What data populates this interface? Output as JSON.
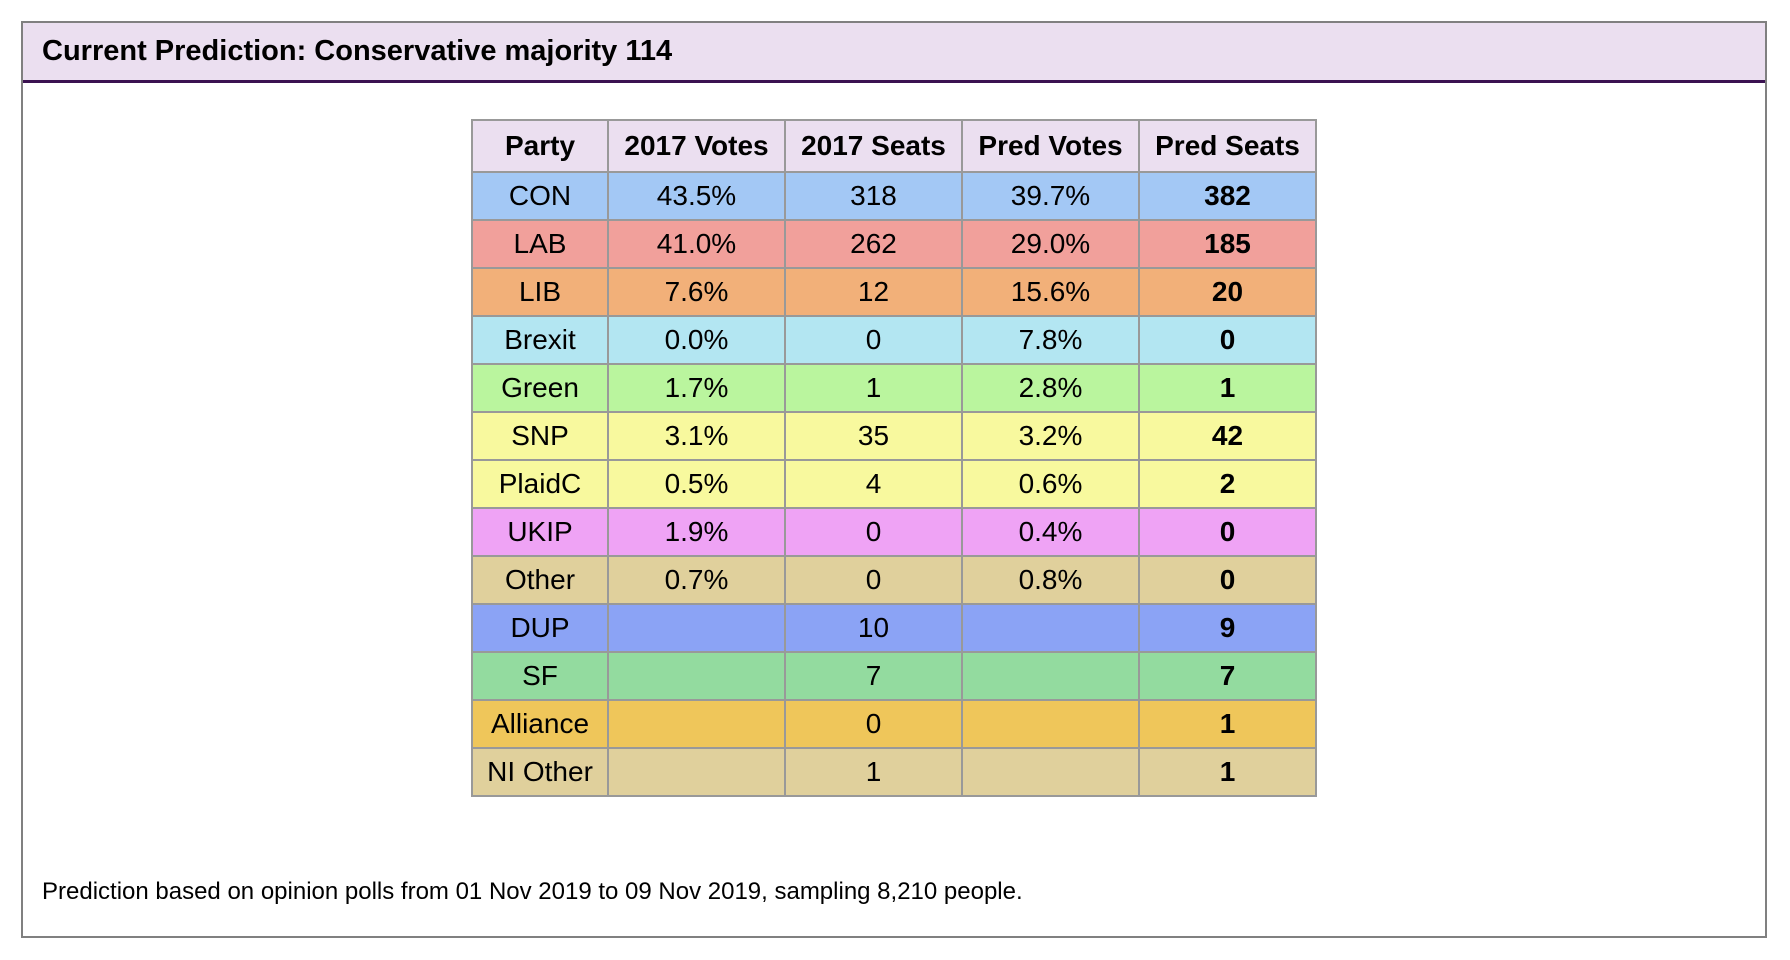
{
  "panel": {
    "title": "Current Prediction: Conservative majority 114",
    "footnote": "Prediction based on opinion polls from 01 Nov 2019 to 09 Nov 2019, sampling 8,210 people."
  },
  "colors": {
    "header_bg": "#ebdff0",
    "header_border": "#3b1251"
  },
  "table": {
    "headers": [
      "Party",
      "2017 Votes",
      "2017 Seats",
      "Pred Votes",
      "Pred Seats"
    ],
    "rows": [
      {
        "party": "CON",
        "votes_2017": "43.5%",
        "seats_2017": "318",
        "pred_votes": "39.7%",
        "pred_seats": "382",
        "color": "#a3c8f5"
      },
      {
        "party": "LAB",
        "votes_2017": "41.0%",
        "seats_2017": "262",
        "pred_votes": "29.0%",
        "pred_seats": "185",
        "color": "#f1a09b"
      },
      {
        "party": "LIB",
        "votes_2017": "7.6%",
        "seats_2017": "12",
        "pred_votes": "15.6%",
        "pred_seats": "20",
        "color": "#f2b079"
      },
      {
        "party": "Brexit",
        "votes_2017": "0.0%",
        "seats_2017": "0",
        "pred_votes": "7.8%",
        "pred_seats": "0",
        "color": "#b3e6f2"
      },
      {
        "party": "Green",
        "votes_2017": "1.7%",
        "seats_2017": "1",
        "pred_votes": "2.8%",
        "pred_seats": "1",
        "color": "#baf59e"
      },
      {
        "party": "SNP",
        "votes_2017": "3.1%",
        "seats_2017": "35",
        "pred_votes": "3.2%",
        "pred_seats": "42",
        "color": "#f8f99e"
      },
      {
        "party": "PlaidC",
        "votes_2017": "0.5%",
        "seats_2017": "4",
        "pred_votes": "0.6%",
        "pred_seats": "2",
        "color": "#f8f99e"
      },
      {
        "party": "UKIP",
        "votes_2017": "1.9%",
        "seats_2017": "0",
        "pred_votes": "0.4%",
        "pred_seats": "0",
        "color": "#efa3f5"
      },
      {
        "party": "Other",
        "votes_2017": "0.7%",
        "seats_2017": "0",
        "pred_votes": "0.8%",
        "pred_seats": "0",
        "color": "#e0d09c"
      },
      {
        "party": "DUP",
        "votes_2017": "",
        "seats_2017": "10",
        "pred_votes": "",
        "pred_seats": "9",
        "color": "#8ba3f5"
      },
      {
        "party": "SF",
        "votes_2017": "",
        "seats_2017": "7",
        "pred_votes": "",
        "pred_seats": "7",
        "color": "#93db9f"
      },
      {
        "party": "Alliance",
        "votes_2017": "",
        "seats_2017": "0",
        "pred_votes": "",
        "pred_seats": "1",
        "color": "#efc65a"
      },
      {
        "party": "NI Other",
        "votes_2017": "",
        "seats_2017": "1",
        "pred_votes": "",
        "pred_seats": "1",
        "color": "#e0d09c"
      }
    ]
  }
}
